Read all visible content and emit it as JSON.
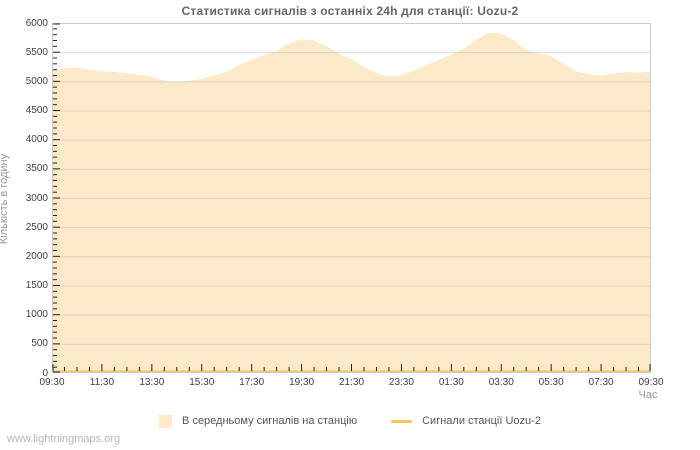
{
  "watermark": {
    "text": "www.lightningmaps.org"
  },
  "chart_data": {
    "type": "area",
    "title": "Статистика сигналів з останніх 24h для станції: Uozu-2",
    "xlabel": "Час",
    "ylabel": "Кількість в годину",
    "ylim": [
      0,
      6000
    ],
    "y_major_step": 500,
    "y_minor_step": 100,
    "x_minor_step_minutes": 30,
    "grid": "horizontal-major",
    "legend_position": "bottom",
    "x_major_ticks": [
      "09:30",
      "11:30",
      "13:30",
      "15:30",
      "17:30",
      "19:30",
      "21:30",
      "23:30",
      "01:30",
      "03:30",
      "05:30",
      "07:30",
      "09:30"
    ],
    "x": [
      "09:30",
      "10:00",
      "10:30",
      "11:00",
      "11:30",
      "12:00",
      "12:30",
      "13:00",
      "13:30",
      "14:00",
      "14:30",
      "15:00",
      "15:30",
      "16:00",
      "16:30",
      "17:00",
      "17:30",
      "18:00",
      "18:30",
      "19:00",
      "19:30",
      "20:00",
      "20:30",
      "21:00",
      "21:30",
      "22:00",
      "22:30",
      "23:00",
      "23:30",
      "00:00",
      "00:30",
      "01:00",
      "01:30",
      "02:00",
      "02:30",
      "03:00",
      "03:30",
      "04:00",
      "04:30",
      "05:00",
      "05:30",
      "06:00",
      "06:30",
      "07:00",
      "07:30",
      "08:00",
      "08:30",
      "09:00",
      "09:30"
    ],
    "series": [
      {
        "name": "В середньому сигналів на станцію",
        "type": "area",
        "color": "#fbe9c9",
        "values": [
          5175,
          5225,
          5235,
          5200,
          5175,
          5160,
          5140,
          5110,
          5080,
          5010,
          4990,
          5010,
          5040,
          5100,
          5165,
          5280,
          5370,
          5450,
          5520,
          5650,
          5720,
          5700,
          5600,
          5470,
          5380,
          5250,
          5140,
          5080,
          5110,
          5180,
          5280,
          5370,
          5460,
          5560,
          5720,
          5830,
          5820,
          5700,
          5540,
          5480,
          5430,
          5300,
          5170,
          5120,
          5100,
          5130,
          5160,
          5150,
          5165
        ]
      },
      {
        "name": "Сигнали станції Uozu-2",
        "type": "line",
        "color": "#f1c65b",
        "values": [
          0,
          0,
          0,
          0,
          0,
          0,
          0,
          0,
          0,
          0,
          0,
          0,
          0,
          0,
          0,
          0,
          0,
          0,
          0,
          0,
          0,
          0,
          0,
          0,
          0,
          0,
          0,
          0,
          0,
          0,
          0,
          0,
          0,
          0,
          0,
          0,
          0,
          0,
          0,
          0,
          0,
          0,
          0,
          0,
          0,
          0,
          0,
          0,
          0
        ]
      }
    ],
    "colors": {
      "area_fill": "#fbe9c9",
      "line": "#f1c65b",
      "grid": "#bfbfbf",
      "border": "#cccccc",
      "tick_mark": "#222222",
      "tick_label": "#404040",
      "title": "#666666",
      "axis_title": "#9a9a9a",
      "legend_text": "#555555",
      "watermark": "#b8b8b8"
    }
  }
}
